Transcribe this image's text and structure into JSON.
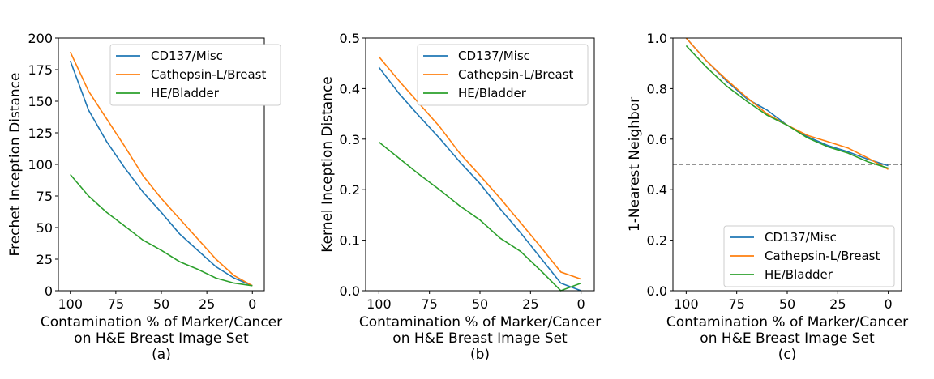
{
  "chart_data": [
    {
      "type": "line",
      "panel_label": "(a)",
      "xlabel": [
        "Contamination % of Marker/Cancer",
        "on H&E Breast Image Set"
      ],
      "ylabel": "Frechet Inception Distance",
      "xlim": [
        100,
        0
      ],
      "ylim": [
        0,
        200
      ],
      "xticks": [
        100,
        75,
        50,
        25,
        0
      ],
      "yticks": [
        0,
        25,
        50,
        75,
        100,
        125,
        150,
        175,
        200
      ],
      "ytick_labels": [
        "0",
        "25",
        "50",
        "75",
        "100",
        "125",
        "150",
        "175",
        "200"
      ],
      "x": [
        100,
        90,
        80,
        70,
        60,
        50,
        40,
        30,
        20,
        10,
        0
      ],
      "legend_position": "top-right",
      "series": [
        {
          "name": "CD137/Misc",
          "color": "#1f77b4",
          "values": [
            182,
            143,
            118,
            97,
            78,
            62,
            45,
            32,
            19,
            10,
            4
          ]
        },
        {
          "name": "Cathepsin-L/Breast",
          "color": "#ff7f0e",
          "values": [
            189,
            158,
            136,
            114,
            91,
            73,
            57,
            41,
            25,
            12,
            4
          ]
        },
        {
          "name": "HE/Bladder",
          "color": "#2ca02c",
          "values": [
            92,
            75,
            62,
            51,
            40,
            32,
            23,
            17,
            10,
            6,
            4
          ]
        }
      ]
    },
    {
      "type": "line",
      "panel_label": "(b)",
      "xlabel": [
        "Contamination % of Marker/Cancer",
        "on H&E Breast Image Set"
      ],
      "ylabel": "Kernel Inception Distance",
      "xlim": [
        100,
        0
      ],
      "ylim": [
        0,
        0.5
      ],
      "xticks": [
        100,
        75,
        50,
        25,
        0
      ],
      "yticks": [
        0,
        0.1,
        0.2,
        0.3,
        0.4,
        0.5
      ],
      "ytick_labels": [
        "0.0",
        "0.1",
        "0.2",
        "0.3",
        "0.4",
        "0.5"
      ],
      "x": [
        100,
        90,
        80,
        70,
        60,
        50,
        40,
        30,
        20,
        10,
        0
      ],
      "legend_position": "top-right",
      "series": [
        {
          "name": "CD137/Misc",
          "color": "#1f77b4",
          "values": [
            0.442,
            0.39,
            0.345,
            0.302,
            0.255,
            0.212,
            0.162,
            0.115,
            0.065,
            0.015,
            0.0
          ]
        },
        {
          "name": "Cathepsin-L/Breast",
          "color": "#ff7f0e",
          "values": [
            0.463,
            0.415,
            0.37,
            0.325,
            0.272,
            0.228,
            0.183,
            0.135,
            0.087,
            0.037,
            0.023
          ]
        },
        {
          "name": "HE/Bladder",
          "color": "#2ca02c",
          "values": [
            0.294,
            0.262,
            0.23,
            0.2,
            0.168,
            0.14,
            0.104,
            0.078,
            0.04,
            0.0,
            0.015
          ]
        }
      ]
    },
    {
      "type": "line",
      "panel_label": "(c)",
      "xlabel": [
        "Contamination % of Marker/Cancer",
        "on H&E Breast Image Set"
      ],
      "ylabel": "1-Nearest Neighbor",
      "xlim": [
        100,
        0
      ],
      "ylim": [
        0,
        1.0
      ],
      "xticks": [
        100,
        75,
        50,
        25,
        0
      ],
      "yticks": [
        0,
        0.2,
        0.4,
        0.6,
        0.8,
        1.0
      ],
      "ytick_labels": [
        "0.0",
        "0.2",
        "0.4",
        "0.6",
        "0.8",
        "1.0"
      ],
      "x": [
        100,
        90,
        80,
        70,
        60,
        50,
        40,
        30,
        20,
        10,
        0
      ],
      "reference_line": {
        "y": 0.5,
        "style": "dashed",
        "color": "#555555"
      },
      "legend_position": "bottom-right",
      "series": [
        {
          "name": "CD137/Misc",
          "color": "#1f77b4",
          "values": [
            1.0,
            0.91,
            0.83,
            0.76,
            0.715,
            0.655,
            0.61,
            0.575,
            0.55,
            0.52,
            0.495
          ]
        },
        {
          "name": "Cathepsin-L/Breast",
          "color": "#ff7f0e",
          "values": [
            1.0,
            0.91,
            0.835,
            0.765,
            0.7,
            0.655,
            0.615,
            0.59,
            0.565,
            0.525,
            0.48
          ]
        },
        {
          "name": "HE/Bladder",
          "color": "#2ca02c",
          "values": [
            0.97,
            0.885,
            0.81,
            0.75,
            0.695,
            0.655,
            0.605,
            0.57,
            0.545,
            0.51,
            0.485
          ]
        }
      ]
    }
  ]
}
